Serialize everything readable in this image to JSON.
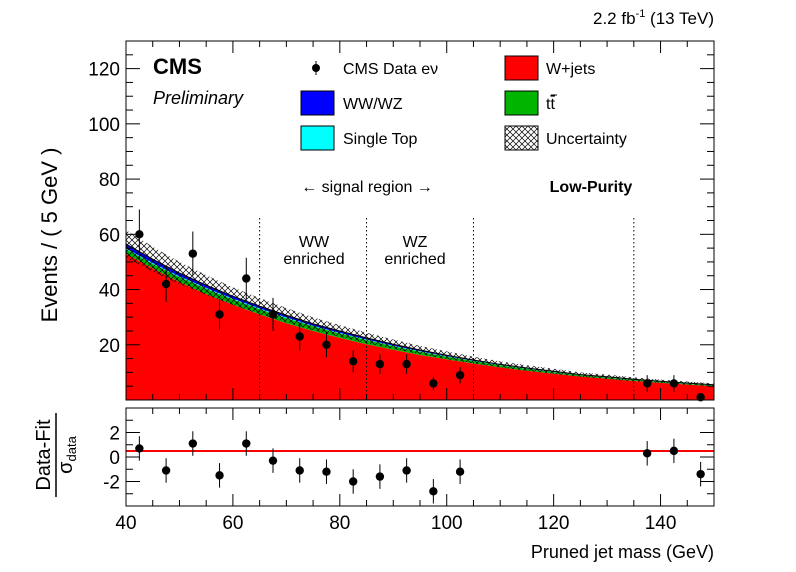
{
  "header": {
    "lumi_value": "2.2 fb",
    "lumi_exp": "-1",
    "lumi_energy": " (13 TeV)"
  },
  "labels": {
    "experiment": "CMS",
    "status": "Preliminary",
    "category": "Low-Purity",
    "signal_region": "← signal region →",
    "ww_region": [
      "WW",
      "enriched"
    ],
    "wz_region": [
      "WZ",
      "enriched"
    ]
  },
  "legend": {
    "data": "CMS Data eν",
    "wjets": "W+jets",
    "wwwz": "WW/WZ",
    "ttbar_t": "t",
    "ttbar_tbar": "t",
    "singletop": "Single Top",
    "uncertainty": "Uncertainty"
  },
  "colors": {
    "wjets": "#ff0000",
    "wwwz": "#0000ff",
    "ttbar": "#00b400",
    "singletop": "#00ffff",
    "fit_line": "#ff0000"
  },
  "chart_data": [
    {
      "type": "area",
      "ylabel": "Events / ( 5 GeV )",
      "xlim": [
        40,
        150
      ],
      "ylim": [
        0,
        130
      ],
      "yticks": [
        20,
        40,
        60,
        80,
        100,
        120
      ],
      "region_boundaries": [
        65,
        85,
        105,
        135
      ],
      "data_points": {
        "x": [
          42.5,
          47.5,
          52.5,
          57.5,
          62.5,
          67.5,
          72.5,
          77.5,
          82.5,
          87.5,
          92.5,
          97.5,
          102.5,
          137.5,
          142.5,
          147.5
        ],
        "y": [
          60,
          42,
          53,
          31,
          44,
          31,
          23,
          20,
          14,
          13,
          13,
          6,
          9,
          6,
          6,
          1
        ],
        "err": [
          9,
          6.5,
          8,
          5.5,
          7.5,
          6,
          5,
          4.5,
          4,
          3.5,
          3.5,
          2.5,
          3,
          3,
          3,
          1.5
        ]
      },
      "curve_x": [
        40,
        45,
        50,
        55,
        60,
        65,
        70,
        75,
        80,
        85,
        90,
        95,
        100,
        105,
        110,
        115,
        120,
        125,
        130,
        135,
        140,
        145,
        150
      ],
      "stack": [
        {
          "name": "W+jets",
          "values": [
            53,
            47.6,
            42.7,
            38.4,
            34.5,
            31,
            27.8,
            25,
            22.5,
            20.2,
            18.2,
            16.3,
            14.7,
            13.2,
            11.8,
            10.6,
            9.5,
            8.5,
            7.7,
            6.9,
            6.2,
            5.6,
            5
          ]
        },
        {
          "name": "tt̄",
          "values": [
            1.6,
            1.7,
            1.8,
            1.9,
            1.9,
            1.9,
            1.8,
            1.7,
            1.6,
            1.5,
            1.3,
            1.2,
            1.0,
            0.9,
            0.8,
            0.7,
            0.6,
            0.5,
            0.5,
            0.4,
            0.4,
            0.3,
            0.3
          ]
        },
        {
          "name": "Single Top",
          "values": [
            0.3,
            0.3,
            0.3,
            0.3,
            0.3,
            0.3,
            0.3,
            0.2,
            0.2,
            0.2,
            0.2,
            0.2,
            0.2,
            0.1,
            0.1,
            0.1,
            0.1,
            0.1,
            0.1,
            0.1,
            0.1,
            0.1,
            0.1
          ]
        },
        {
          "name": "WW/WZ",
          "values": [
            1.6,
            1.4,
            1.2,
            1.0,
            0.9,
            0.8,
            0.8,
            0.7,
            0.7,
            0.6,
            0.5,
            0.4,
            0.3,
            0.3,
            0.2,
            0.2,
            0.2,
            0.1,
            0.1,
            0.1,
            0.1,
            0.1,
            0.1
          ]
        }
      ],
      "uncertainty_halfwidth": [
        5,
        4.5,
        4,
        3.6,
        3.2,
        2.9,
        2.6,
        2.3,
        2.1,
        1.9,
        1.7,
        1.5,
        1.4,
        1.2,
        1.1,
        1.0,
        0.9,
        0.8,
        0.8,
        0.7,
        0.6,
        0.6,
        0.5
      ]
    },
    {
      "type": "scatter",
      "ylabel_main": "Data-Fit",
      "ylabel_denom": "σ",
      "ylabel_sub": "data",
      "xlabel": "Pruned jet mass (GeV)",
      "xlim": [
        40,
        150
      ],
      "ylim": [
        -4,
        4
      ],
      "yticks": [
        2,
        0,
        -2
      ],
      "ytick_labels": [
        "2",
        "0",
        "-2"
      ],
      "xticks": [
        40,
        60,
        80,
        100,
        120,
        140
      ],
      "x": [
        42.5,
        47.5,
        52.5,
        57.5,
        62.5,
        67.5,
        72.5,
        77.5,
        82.5,
        87.5,
        92.5,
        97.5,
        102.5,
        137.5,
        142.5,
        147.5
      ],
      "y": [
        0.7,
        -1.1,
        1.1,
        -1.5,
        1.1,
        -0.3,
        -1.1,
        -1.2,
        -2.0,
        -1.6,
        -1.1,
        -2.8,
        -1.2,
        0.3,
        0.5,
        -1.4
      ],
      "err": [
        1,
        1,
        1,
        1,
        1,
        1,
        1,
        1,
        1,
        1,
        1,
        1,
        1,
        1,
        1,
        1
      ]
    }
  ]
}
